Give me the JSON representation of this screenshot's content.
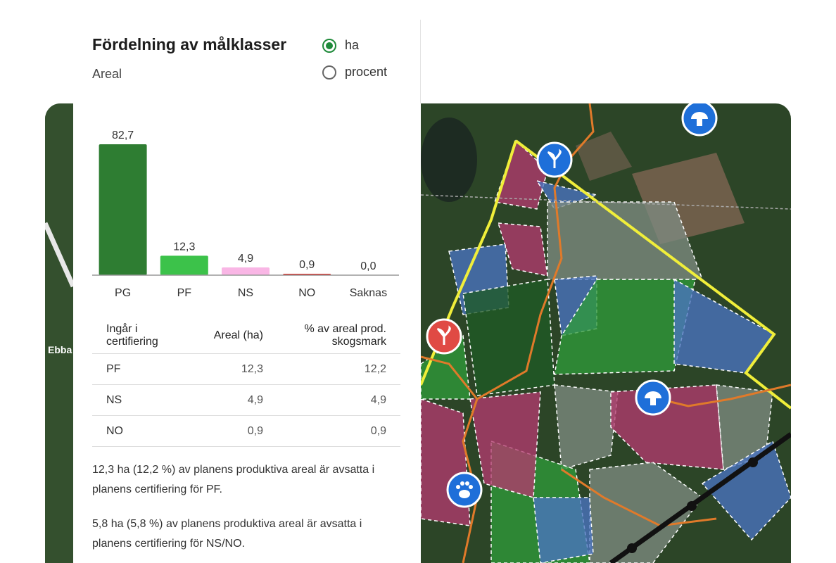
{
  "panel": {
    "title": "Fördelning av målklasser",
    "subtitle": "Areal",
    "unit_options": [
      {
        "label": "ha",
        "selected": true
      },
      {
        "label": "procent",
        "selected": false
      }
    ]
  },
  "chart_data": {
    "type": "bar",
    "categories": [
      "PG",
      "PF",
      "NS",
      "NO",
      "Saknas"
    ],
    "values": [
      82.7,
      12.3,
      4.9,
      0.9,
      0.0
    ],
    "value_labels": [
      "82,7",
      "12,3",
      "4,9",
      "0,9",
      "0,0"
    ],
    "colors": [
      "#2e7d32",
      "#3cc24a",
      "#f9b6e5",
      "#d9302a",
      "#9e9e9e"
    ]
  },
  "table": {
    "headers": [
      "Ingår i certifiering",
      "Areal (ha)",
      "% av areal prod. skogsmark"
    ],
    "rows": [
      [
        "PF",
        "12,3",
        "12,2"
      ],
      [
        "NS",
        "4,9",
        "4,9"
      ],
      [
        "NO",
        "0,9",
        "0,9"
      ]
    ]
  },
  "notes": [
    "12,3 ha (12,2 %) av planens produktiva areal är avsatta i planens certifiering för PF.",
    "5,8 ha (5,8 %) av planens produktiva areal är avsatta i planens certifiering för NS/NO."
  ],
  "map": {
    "labels": [
      "Ebba"
    ]
  }
}
